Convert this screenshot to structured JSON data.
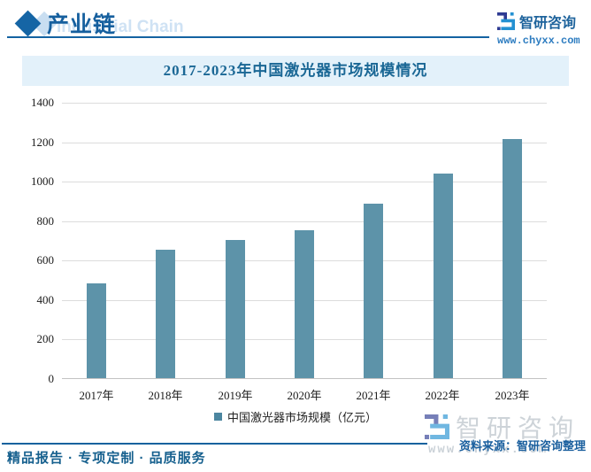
{
  "header": {
    "title": "产业链",
    "subtitle": "Industrial Chain",
    "brand_name": "智研咨询",
    "brand_url": "www.chyxx.com"
  },
  "chart_data": {
    "type": "bar",
    "title": "2017-2023年中国激光器市场规模情况",
    "categories": [
      "2017年",
      "2018年",
      "2019年",
      "2020年",
      "2021年",
      "2022年",
      "2023年"
    ],
    "values": [
      480,
      650,
      700,
      750,
      885,
      1035,
      1210
    ],
    "series_name": "中国激光器市场规模（亿元）",
    "xlabel": "",
    "ylabel": "",
    "ylim": [
      0,
      1400
    ],
    "yticks": [
      0,
      200,
      400,
      600,
      800,
      1000,
      1200,
      1400
    ],
    "grid": true,
    "legend_position": "bottom",
    "bar_color": "#5d93a9",
    "legend_marker_color": "#4c86a0"
  },
  "watermark": {
    "brand_name": "智研咨询",
    "url": "www.chyxx.com"
  },
  "source": {
    "note": "资料来源：智研咨询整理"
  },
  "footer": {
    "slogan": "精品报告 · 专项定制 · 品质服务"
  },
  "colors": {
    "accent_blue": "#15629e",
    "title_band_bg": "#e3f1fa",
    "title_text": "#1a6795",
    "watermark_gray": "#cdd3d8"
  }
}
